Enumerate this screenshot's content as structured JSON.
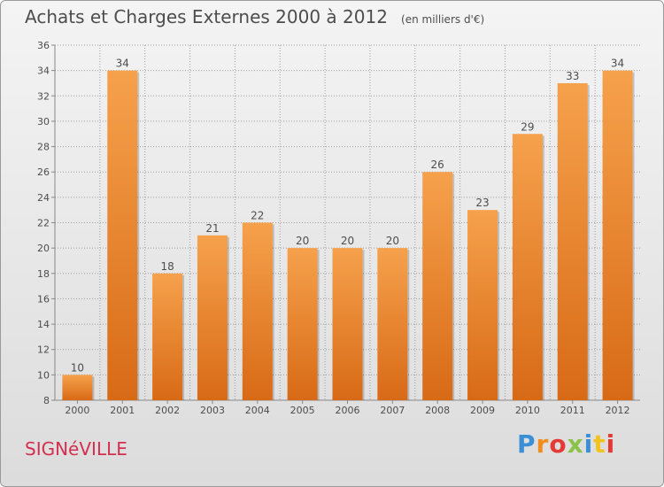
{
  "header": {
    "title": "Achats et Charges Externes 2000 à 2012",
    "unit": "(en milliers d'€)"
  },
  "footer": {
    "city": "SIGNéVILLE",
    "logo_letters": [
      "P",
      "r",
      "o",
      "x",
      "i",
      "t",
      "i"
    ],
    "logo_colors": [
      "#3a8fd6",
      "#f28c1e",
      "#e53935",
      "#8bc34a",
      "#3a8fd6",
      "#f2c21e",
      "#e53935"
    ]
  },
  "colors": {
    "bar_light": "#f6a14c",
    "bar_dark": "#d86a16",
    "grid": "#9d9d9d",
    "text": "#4d4d4d"
  },
  "chart_data": {
    "type": "bar",
    "categories": [
      "2000",
      "2001",
      "2002",
      "2003",
      "2004",
      "2005",
      "2006",
      "2007",
      "2008",
      "2009",
      "2010",
      "2011",
      "2012"
    ],
    "values": [
      10,
      34,
      18,
      21,
      22,
      20,
      20,
      20,
      26,
      23,
      29,
      33,
      34
    ],
    "data_labels": [
      "10",
      "34",
      "18",
      "21",
      "22",
      "20",
      "20",
      "20",
      "26",
      "23",
      "29",
      "33",
      "34"
    ],
    "title": "Achats et Charges Externes 2000 à 2012",
    "xlabel": "",
    "ylabel": "",
    "ylim": [
      8,
      36
    ],
    "yticks": [
      8,
      10,
      12,
      14,
      16,
      18,
      20,
      22,
      24,
      26,
      28,
      30,
      32,
      34,
      36
    ],
    "grid": true
  }
}
